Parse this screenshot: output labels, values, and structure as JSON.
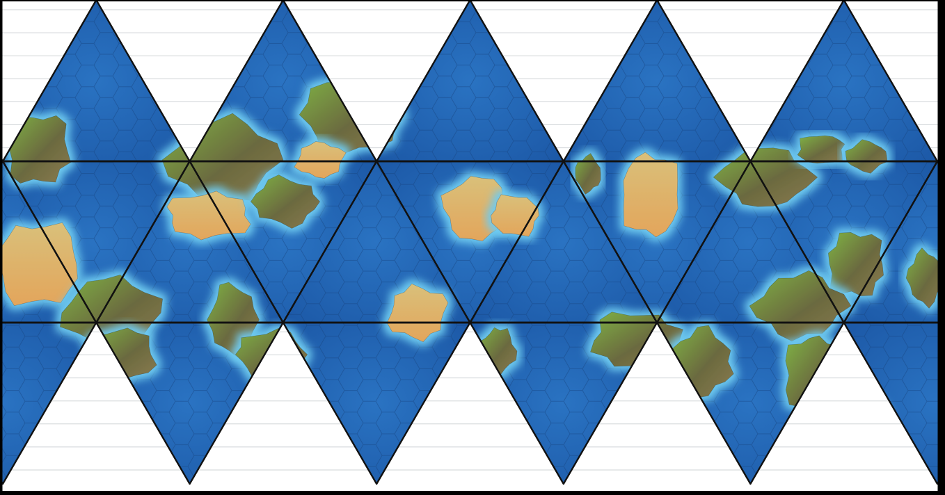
{
  "map": {
    "projection": "icosahedral net",
    "face_count": 20,
    "colors": {
      "frame": "#000000",
      "paper": "#ffffff",
      "ruling": "#cfd3d6",
      "deep_ocean": "#1c58a6",
      "mid_ocean": "#2a73c2",
      "shallow": "#3fa6de",
      "coast_shallow": "#6fcbf0",
      "lowland": "#5e9a3a",
      "grass": "#7fb445",
      "hill": "#6b6a3f",
      "highland": "#8b7b4f",
      "desert": "#e3a55b",
      "sand": "#d9c07a",
      "snow": "#e9ecf2",
      "ice": "#c9cde8",
      "outline": "#111111",
      "hexgrid": "#16427e"
    },
    "icons": [
      "hex-grid-pattern",
      "landmass-shape",
      "ice-cap-shape"
    ]
  }
}
